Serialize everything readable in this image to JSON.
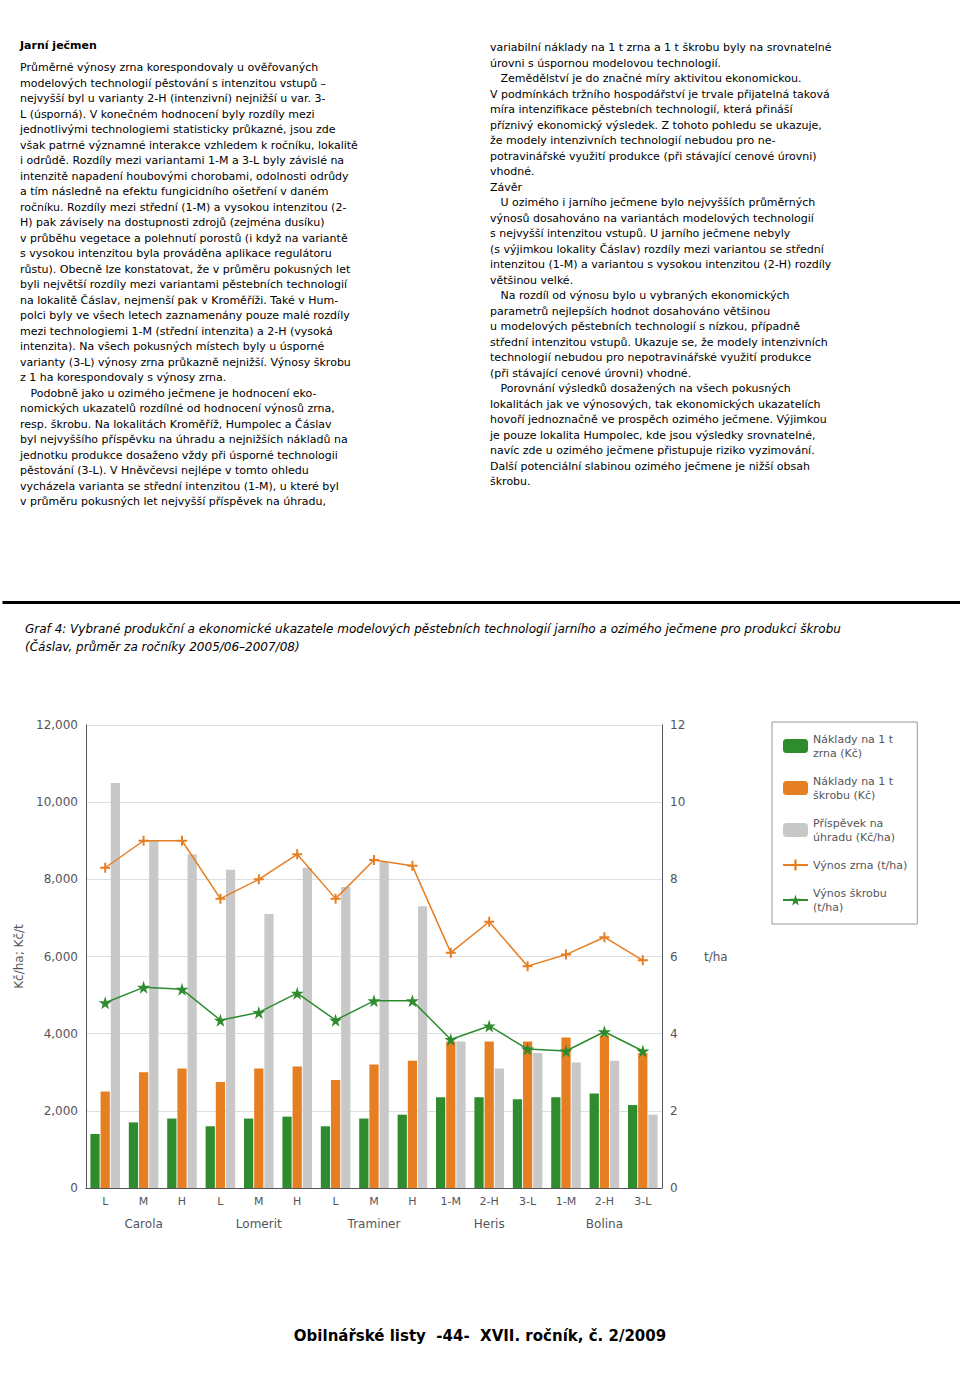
{
  "chart_data": {
    "type": "bar",
    "title": "Graf 4: Vybrané produkční a ekonomické ukazatele modelových pěstebních technologií jarního a ozimého ječmene pro produkci škrobu",
    "subtitle": "(Čáslav, průměr za ročníky 2005/06–2007/08)",
    "ylabel": "Kč/ha; Kč/t",
    "y2label": "t/ha",
    "categories": [
      "L",
      "M",
      "H",
      "L",
      "M",
      "H",
      "L",
      "M",
      "H",
      "1-M",
      "2-H",
      "3-L",
      "1-M",
      "2-H",
      "3-L"
    ],
    "category_groups": [
      "Carola",
      "Carola",
      "Carola",
      "Lomerit",
      "Lomerit",
      "Lomerit",
      "Traminer",
      "Traminer",
      "Traminer",
      "Heris",
      "Heris",
      "Heris",
      "Bolina",
      "Bolina",
      "Bolina"
    ],
    "ylim": [
      0,
      12000
    ],
    "yticks": [
      0,
      2000,
      4000,
      6000,
      8000,
      10000,
      12000
    ],
    "y2lim": [
      0,
      12
    ],
    "y2ticks": [
      0,
      2,
      4,
      6,
      8,
      10,
      12
    ],
    "grid": true,
    "legend": "right",
    "series": [
      {
        "name": "Náklady na 1 t\nzrna (Kč)",
        "type": "bar",
        "color": "#2e8b2e",
        "values": [
          1400,
          1700,
          1800,
          1600,
          1800,
          1850,
          1600,
          1800,
          1900,
          2350,
          2350,
          2300,
          2350,
          2450,
          2150
        ]
      },
      {
        "name": "Náklady na 1 t\nškrobu (Kč)",
        "type": "bar",
        "color": "#e67e22",
        "values": [
          2500,
          3000,
          3100,
          2750,
          3100,
          3150,
          2800,
          3200,
          3300,
          3800,
          3800,
          3800,
          3900,
          3950,
          3500
        ]
      },
      {
        "name": "Příspěvek na\núhradu (Kč/ha)",
        "type": "bar",
        "color": "#c8c8c8",
        "values": [
          10500,
          9000,
          8650,
          8250,
          7100,
          8300,
          7800,
          8450,
          7300,
          3800,
          3100,
          3500,
          3250,
          3300,
          1900
        ]
      },
      {
        "name": "Výnos zrna (t/ha)",
        "type": "line",
        "axis": "y2",
        "color": "#e67e22",
        "marker": "plus",
        "values": [
          8.3,
          9.0,
          9.0,
          7.5,
          8.0,
          8.65,
          7.5,
          8.5,
          8.35,
          6.1,
          6.9,
          5.75,
          6.05,
          6.5,
          5.9
        ]
      },
      {
        "name": "Výnos škrobu\n(t/ha)",
        "type": "line",
        "axis": "y2",
        "color": "#2e8b2e",
        "marker": "star",
        "values": [
          4.8,
          5.2,
          5.15,
          4.35,
          4.55,
          5.05,
          4.35,
          4.85,
          4.85,
          3.85,
          4.2,
          3.6,
          3.55,
          4.05,
          3.55
        ]
      }
    ],
    "annotations": [
      "Jarní ječmen",
      "Průměrné výnosy zrna korespondovaly u ověřovaných\nmodelových technologií pěstování s intenzitou vstupů –\nnejvyšší byl u varianty 2-H (intenzivní) nejnižší u var. 3-\nL (úsporná). V konečném hodnocení byly rozdíly mezi\njednotlivými technologiemi statisticky průkazné, jsou zde\nvšak patrné významné interakce vzhledem k ročníku, lokalitě\ni odrůdě. Rozdíly mezi variantami 1-M a 3-L byly závislé na\nintenzitě napadení houbovými chorobami, odolnosti odrůdy\na tím následně na efektu fungicidního ošetření v daném\nročníku. Rozdíly mezi střední (1-M) a vysokou intenzitou (2-\nH) pak závisely na dostupnosti zdrojů (zejména dusíku)\nv průběhu vegetace a polehnutí porostů (i když na variantě\ns vysokou intenzitou byla prováděna aplikace regulátoru\nrůstu). Obecně lze konstatovat, že v průměru pokusných let\nbyli největší rozdíly mezi variantami pěstebních technologií\nna lokalitě Čáslav, nejmenší pak v Kroměříži. Také v Hum-\npolci byly ve všech letech zaznamenány pouze malé rozdíly\nmezi technologiemi 1-M (střední intenzita) a 2-H (vysoká\nintenzita). Na všech pokusných místech byly u úsporné\nvarianty (3-L) výnosy zrna průkazně nejnižší. Výnosy škrobu\nz 1 ha korespondovaly s výnosy zrna.\n   Podobně jako u ozimého ječmene je hodnocení eko-\nnomických ukazatelů rozdílné od hodnocení výnosů zrna,\nresp. škrobu. Na lokalitách Kroměříž, Humpolec a Čáslav\nbyl nejvyššího příspěvku na úhradu a nejnižších nákladů na\njednotku produkce dosaženo vždy při úsporné technologii\npěstování (3-L). V Hněvčevsi nejlépe v tomto ohledu\nvycházela varianta se střední intenzitou (1-M), u které byl\nv průměru pokusných let nejvyšší příspěvek na úhradu,",
      "variabilní náklady na 1 t zrna a 1 t škrobu byly na srovnatelné\núrovni s úspornou modelovou technologií.\n   Zemědělství je do značné míry aktivitou ekonomickou.\nV podmínkách tržního hospodářství je trvale přijatelná taková\nmíra intenzifikace pěstebních technologií, která přináší\npříznivý ekonomický výsledek. Z tohoto pohledu se ukazuje,\nže modely intenzivních technologií nebudou pro ne-\npotravinářské využití produkce (při stávající cenové úrovni)\nvhodné.\nZávěr\n   U ozimého i jarního ječmene bylo nejvyšších průměrných\nvýnosů dosahováno na variantách modelových technologií\ns nejvyšší intenzitou vstupů. U jarního ječmene nebyly\n(s výjimkou lokality Čáslav) rozdíly mezi variantou se střední\nintenzitou (1-M) a variantou s vysokou intenzitou (2-H) rozdíly\nvětšinou velké.\n   Na rozdíl od výnosu bylo u vybraných ekonomických\nparametrů nejlepších hodnot dosahováno většinou\nu modelových pěstebních technologií s nízkou, případně\nstřední intenzitou vstupů. Ukazuje se, že modely intenzivních\ntechnologií nebudou pro nepotravinářské využití produkce\n(při stávající cenové úrovni) vhodné.\n   Porovnání výsledků dosažených na všech pokusných\nlokalitách jak ve výnosových, tak ekonomických ukazatelích\nhovoří jednoznačně ve prospěch ozimého ječmene. Výjimkou\nje pouze lokalita Humpolec, kde jsou výsledky srovnatelné,\nnavíc zde u ozimého ječmene přistupuje riziko vyzimování.\nDalší potenciální slabinou ozimého ječmene je nižší obsah\nškrobu.",
      "Obilnářské listy  -44-  XVII. ročník, č. 2/2009"
    ]
  }
}
